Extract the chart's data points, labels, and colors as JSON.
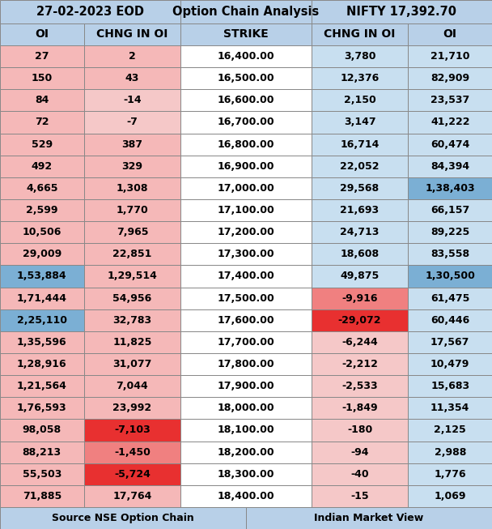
{
  "title_left": "27-02-2023 EOD",
  "title_center": "Option Chain Analysis",
  "title_right": "NIFTY 17,392.70",
  "col_headers": [
    "OI",
    "CHNG IN OI",
    "STRIKE",
    "CHNG IN OI",
    "OI"
  ],
  "rows": [
    {
      "strike": "16,400.00",
      "call_oi": "27",
      "call_chng": "2",
      "put_chng": "3,780",
      "put_oi": "21,710",
      "call_oi_raw": 27,
      "call_chng_raw": 2,
      "put_chng_raw": 3780,
      "put_oi_raw": 21710
    },
    {
      "strike": "16,500.00",
      "call_oi": "150",
      "call_chng": "43",
      "put_chng": "12,376",
      "put_oi": "82,909",
      "call_oi_raw": 150,
      "call_chng_raw": 43,
      "put_chng_raw": 12376,
      "put_oi_raw": 82909
    },
    {
      "strike": "16,600.00",
      "call_oi": "84",
      "call_chng": "-14",
      "put_chng": "2,150",
      "put_oi": "23,537",
      "call_oi_raw": 84,
      "call_chng_raw": -14,
      "put_chng_raw": 2150,
      "put_oi_raw": 23537
    },
    {
      "strike": "16,700.00",
      "call_oi": "72",
      "call_chng": "-7",
      "put_chng": "3,147",
      "put_oi": "41,222",
      "call_oi_raw": 72,
      "call_chng_raw": -7,
      "put_chng_raw": 3147,
      "put_oi_raw": 41222
    },
    {
      "strike": "16,800.00",
      "call_oi": "529",
      "call_chng": "387",
      "put_chng": "16,714",
      "put_oi": "60,474",
      "call_oi_raw": 529,
      "call_chng_raw": 387,
      "put_chng_raw": 16714,
      "put_oi_raw": 60474
    },
    {
      "strike": "16,900.00",
      "call_oi": "492",
      "call_chng": "329",
      "put_chng": "22,052",
      "put_oi": "84,394",
      "call_oi_raw": 492,
      "call_chng_raw": 329,
      "put_chng_raw": 22052,
      "put_oi_raw": 84394
    },
    {
      "strike": "17,000.00",
      "call_oi": "4,665",
      "call_chng": "1,308",
      "put_chng": "29,568",
      "put_oi": "1,38,403",
      "call_oi_raw": 4665,
      "call_chng_raw": 1308,
      "put_chng_raw": 29568,
      "put_oi_raw": 138403
    },
    {
      "strike": "17,100.00",
      "call_oi": "2,599",
      "call_chng": "1,770",
      "put_chng": "21,693",
      "put_oi": "66,157",
      "call_oi_raw": 2599,
      "call_chng_raw": 1770,
      "put_chng_raw": 21693,
      "put_oi_raw": 66157
    },
    {
      "strike": "17,200.00",
      "call_oi": "10,506",
      "call_chng": "7,965",
      "put_chng": "24,713",
      "put_oi": "89,225",
      "call_oi_raw": 10506,
      "call_chng_raw": 7965,
      "put_chng_raw": 24713,
      "put_oi_raw": 89225
    },
    {
      "strike": "17,300.00",
      "call_oi": "29,009",
      "call_chng": "22,851",
      "put_chng": "18,608",
      "put_oi": "83,558",
      "call_oi_raw": 29009,
      "call_chng_raw": 22851,
      "put_chng_raw": 18608,
      "put_oi_raw": 83558
    },
    {
      "strike": "17,400.00",
      "call_oi": "1,53,884",
      "call_chng": "1,29,514",
      "put_chng": "49,875",
      "put_oi": "1,30,500",
      "call_oi_raw": 153884,
      "call_chng_raw": 129514,
      "put_chng_raw": 49875,
      "put_oi_raw": 130500
    },
    {
      "strike": "17,500.00",
      "call_oi": "1,71,444",
      "call_chng": "54,956",
      "put_chng": "-9,916",
      "put_oi": "61,475",
      "call_oi_raw": 171444,
      "call_chng_raw": 54956,
      "put_chng_raw": -9916,
      "put_oi_raw": 61475
    },
    {
      "strike": "17,600.00",
      "call_oi": "2,25,110",
      "call_chng": "32,783",
      "put_chng": "-29,072",
      "put_oi": "60,446",
      "call_oi_raw": 225110,
      "call_chng_raw": 32783,
      "put_chng_raw": -29072,
      "put_oi_raw": 60446
    },
    {
      "strike": "17,700.00",
      "call_oi": "1,35,596",
      "call_chng": "11,825",
      "put_chng": "-6,244",
      "put_oi": "17,567",
      "call_oi_raw": 135596,
      "call_chng_raw": 11825,
      "put_chng_raw": -6244,
      "put_oi_raw": 17567
    },
    {
      "strike": "17,800.00",
      "call_oi": "1,28,916",
      "call_chng": "31,077",
      "put_chng": "-2,212",
      "put_oi": "10,479",
      "call_oi_raw": 128916,
      "call_chng_raw": 31077,
      "put_chng_raw": -2212,
      "put_oi_raw": 10479
    },
    {
      "strike": "17,900.00",
      "call_oi": "1,21,564",
      "call_chng": "7,044",
      "put_chng": "-2,533",
      "put_oi": "15,683",
      "call_oi_raw": 121564,
      "call_chng_raw": 7044,
      "put_chng_raw": -2533,
      "put_oi_raw": 15683
    },
    {
      "strike": "18,000.00",
      "call_oi": "1,76,593",
      "call_chng": "23,992",
      "put_chng": "-1,849",
      "put_oi": "11,354",
      "call_oi_raw": 176593,
      "call_chng_raw": 23992,
      "put_chng_raw": -1849,
      "put_oi_raw": 11354
    },
    {
      "strike": "18,100.00",
      "call_oi": "98,058",
      "call_chng": "-7,103",
      "put_chng": "-180",
      "put_oi": "2,125",
      "call_oi_raw": 98058,
      "call_chng_raw": -7103,
      "put_chng_raw": -180,
      "put_oi_raw": 2125
    },
    {
      "strike": "18,200.00",
      "call_oi": "88,213",
      "call_chng": "-1,450",
      "put_chng": "-94",
      "put_oi": "2,988",
      "call_oi_raw": 88213,
      "call_chng_raw": -1450,
      "put_chng_raw": -94,
      "put_oi_raw": 2988
    },
    {
      "strike": "18,300.00",
      "call_oi": "55,503",
      "call_chng": "-5,724",
      "put_chng": "-40",
      "put_oi": "1,776",
      "call_oi_raw": 55503,
      "call_chng_raw": -5724,
      "put_chng_raw": -40,
      "put_oi_raw": 1776
    },
    {
      "strike": "18,400.00",
      "call_oi": "71,885",
      "call_chng": "17,764",
      "put_chng": "-15",
      "put_oi": "1,069",
      "call_oi_raw": 71885,
      "call_chng_raw": 17764,
      "put_chng_raw": -15,
      "put_oi_raw": 1069
    }
  ],
  "header_bg": "#b8d0e8",
  "title_bg": "#b8d0e8",
  "call_default_bg": "#f5b8b8",
  "put_default_bg": "#c8dff0",
  "blue_highlight_bg": "#7bafd4",
  "red_strong_bg": "#e83030",
  "red_medium_bg": "#f08080",
  "red_light_bg": "#f5b8b8",
  "pink_light_bg": "#f5c8c8",
  "strike_bg": "#ffffff",
  "footer_bg": "#b8d0e8",
  "border_color": "#888888",
  "footer_left": "Source NSE Option Chain",
  "footer_right": "Indian Market View",
  "font_size": 9.0,
  "header_font_size": 10.0,
  "title_font_size": 10.5
}
